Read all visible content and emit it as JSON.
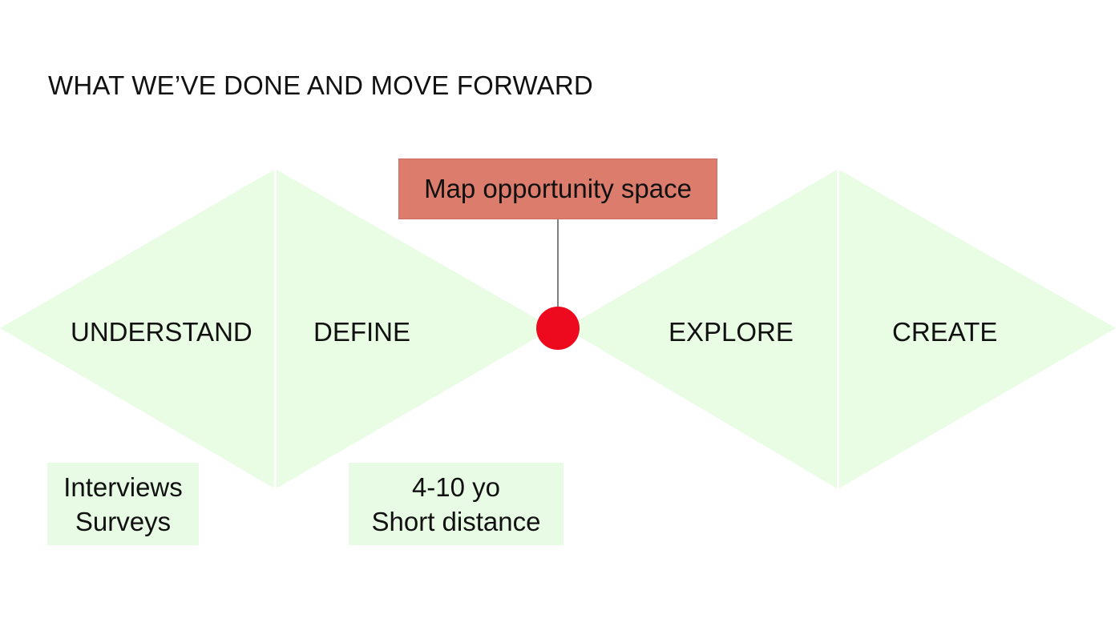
{
  "title": "WHAT WE’VE DONE AND MOVE FORWARD",
  "phases": [
    {
      "label": "UNDERSTAND"
    },
    {
      "label": "DEFINE"
    },
    {
      "label": "EXPLORE"
    },
    {
      "label": "CREATE"
    }
  ],
  "notes": {
    "understand": [
      "Interviews",
      "Surveys"
    ],
    "define": [
      "4-10 yo",
      "Short distance"
    ]
  },
  "callout": {
    "label": "Map opportunity space"
  },
  "colors": {
    "diamond_fill": "#e9fce4",
    "note_fill": "#e8fbe4",
    "callout_fill": "#db7c6c",
    "marker": "#ee0a1e",
    "connector": "#555555"
  }
}
